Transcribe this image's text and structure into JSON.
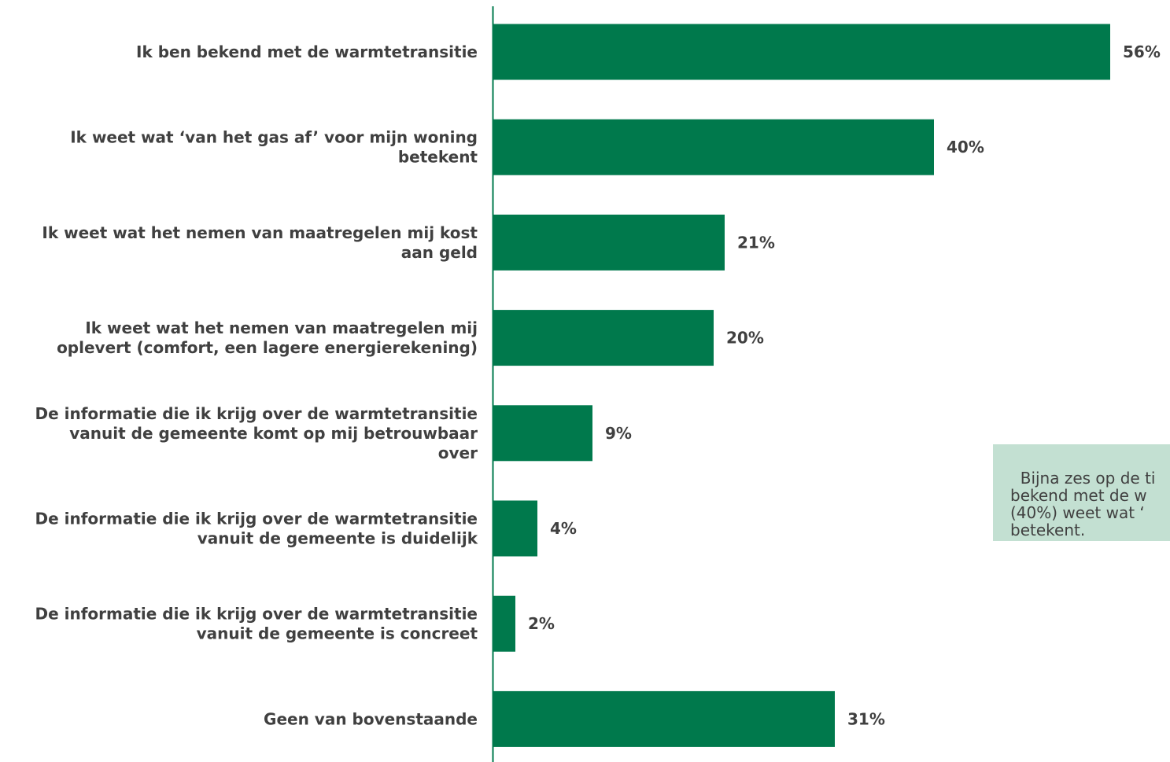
{
  "colors": {
    "bar": "#00794c",
    "axis": "#00794c",
    "text": "#404040",
    "callout_bg": "#c3e0d2"
  },
  "chart_data": {
    "type": "bar",
    "orientation": "horizontal",
    "title": "",
    "xlabel": "",
    "ylabel": "",
    "grid": false,
    "value_suffix": "%",
    "xlim": [
      0,
      56
    ],
    "categories": [
      [
        "Ik ben bekend met de warmtetransitie"
      ],
      [
        "Ik weet wat ‘van het gas af’ voor mijn woning",
        "betekent"
      ],
      [
        "Ik weet wat het nemen van maatregelen mij kost",
        "aan geld"
      ],
      [
        "Ik weet wat het nemen van maatregelen mij",
        "oplevert (comfort, een lagere energierekening)"
      ],
      [
        "De informatie die ik krijg over de warmtetransitie",
        "vanuit de gemeente komt op mij betrouwbaar",
        "over"
      ],
      [
        "De informatie die ik krijg over de warmtetransitie",
        "vanuit de gemeente is duidelijk"
      ],
      [
        "De informatie die ik krijg over de warmtetransitie",
        "vanuit de gemeente is concreet"
      ],
      [
        "Geen van bovenstaande"
      ]
    ],
    "values": [
      56,
      40,
      21,
      20,
      9,
      4,
      2,
      31
    ],
    "value_labels": [
      "56%",
      "40%",
      "21%",
      "20%",
      "9%",
      "4%",
      "2%",
      "31%"
    ]
  },
  "callout": {
    "text": "Bijna zes op de ti\nbekend met de w\n(40%) weet wat ‘\nbetekent."
  }
}
